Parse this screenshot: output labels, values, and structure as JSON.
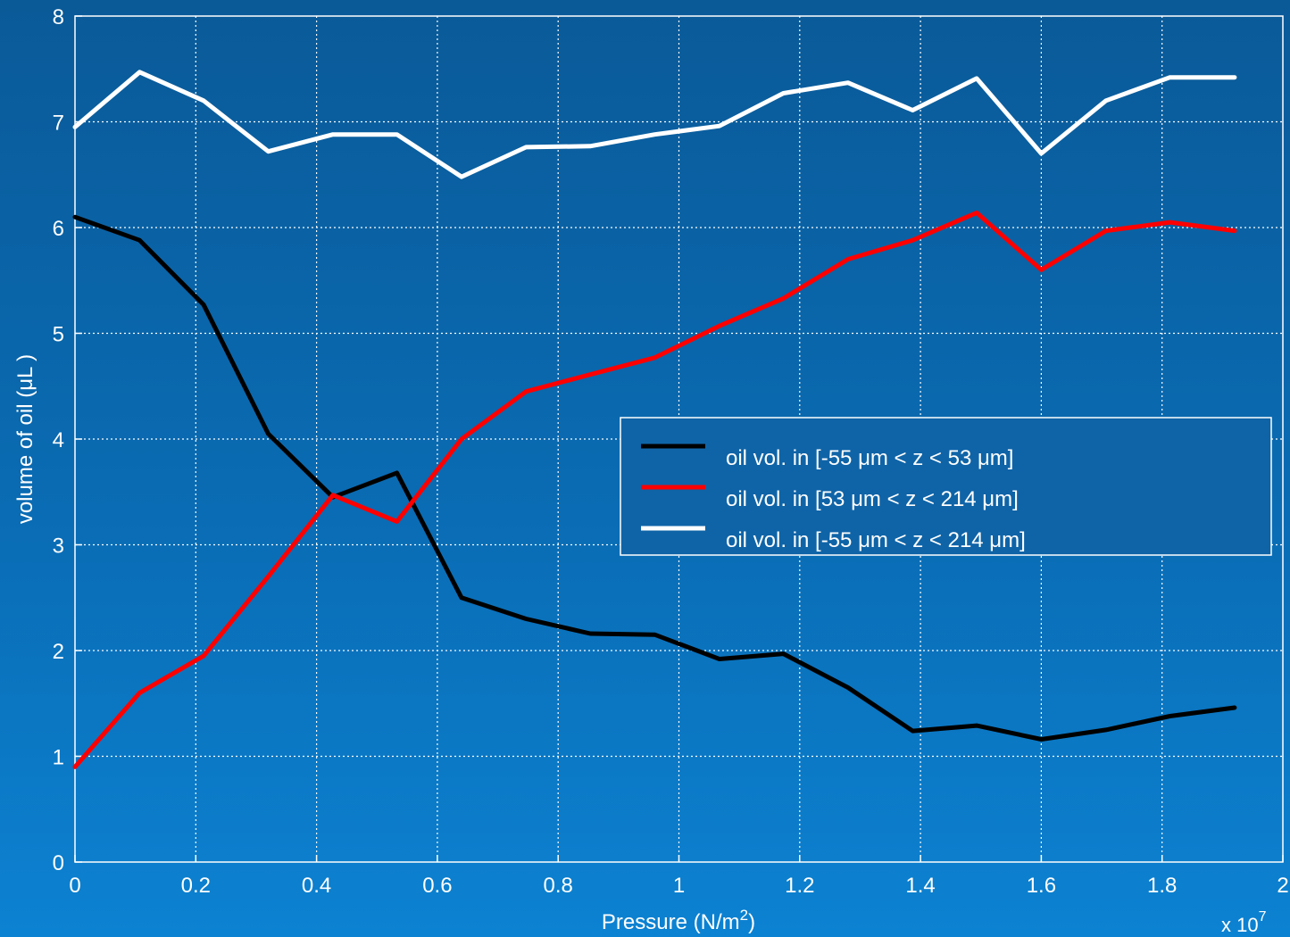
{
  "chart_data": {
    "type": "line",
    "xlabel": "Pressure (N/m",
    "xlabel_sup": "2",
    "xlabel_close": ")",
    "ylabel": "volume of oil (μL )",
    "x_multiplier": "x 10",
    "x_multiplier_exp": "7",
    "xlim": [
      0,
      2
    ],
    "ylim": [
      0,
      8
    ],
    "xticks": [
      "0",
      "0.2",
      "0.4",
      "0.6",
      "0.8",
      "1",
      "1.2",
      "1.4",
      "1.6",
      "1.8",
      "2"
    ],
    "yticks": [
      "0",
      "1",
      "2",
      "3",
      "4",
      "5",
      "6",
      "7",
      "8"
    ],
    "grid": true,
    "legend_position": "center-right",
    "x": [
      0,
      0.107,
      0.213,
      0.32,
      0.427,
      0.533,
      0.64,
      0.747,
      0.853,
      0.96,
      1.067,
      1.173,
      1.28,
      1.387,
      1.493,
      1.6,
      1.707,
      1.813,
      1.92
    ],
    "series": [
      {
        "name": "oil vol. in [-55 μm < z < 53 μm]",
        "color": "#000000",
        "values": [
          6.1,
          5.88,
          5.27,
          4.05,
          3.45,
          3.68,
          2.5,
          2.3,
          2.16,
          2.15,
          1.92,
          1.97,
          1.65,
          1.24,
          1.29,
          1.16,
          1.25,
          1.38,
          1.46
        ]
      },
      {
        "name": "oil vol. in [53 μm < z < 214 μm]",
        "color": "#ff0000",
        "values": [
          0.9,
          1.6,
          1.95,
          2.7,
          3.47,
          3.22,
          4.0,
          4.45,
          4.61,
          4.77,
          5.07,
          5.33,
          5.7,
          5.88,
          6.14,
          5.6,
          5.97,
          6.05,
          5.97
        ]
      },
      {
        "name": "oil vol. in [-55 μm < z < 214 μm]",
        "color": "#ffffff",
        "values": [
          6.95,
          7.47,
          7.2,
          6.72,
          6.88,
          6.88,
          6.48,
          6.76,
          6.77,
          6.88,
          6.96,
          7.27,
          7.37,
          7.11,
          7.41,
          6.7,
          7.2,
          7.42,
          7.42
        ]
      }
    ]
  }
}
